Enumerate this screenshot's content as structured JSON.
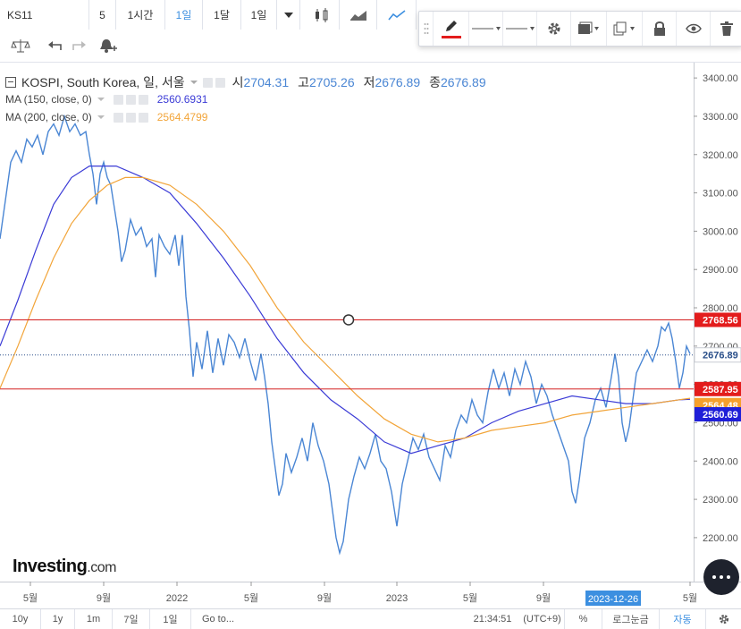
{
  "toolbar": {
    "symbol": "KS11",
    "interval_number": "5",
    "intervals": [
      "1시간",
      "1일",
      "1달",
      "1일"
    ],
    "active_interval": "1일"
  },
  "legend": {
    "title": "KOSPI, South Korea, 일, 서울",
    "open_label": "시",
    "open": "2704.31",
    "high_label": "고",
    "high": "2705.26",
    "low_label": "저",
    "low": "2676.89",
    "close_label": "종",
    "close": "2676.89",
    "ma150_label": "MA (150, close, 0)",
    "ma150_value": "2560.6931",
    "ma200_label": "MA (200, close, 0)",
    "ma200_value": "2564.4799"
  },
  "price_labels": {
    "line_top": "2768.56",
    "last": "2676.89",
    "line_bottom": "2587.95",
    "ma200": "2564.48",
    "ma150": "2560.69"
  },
  "date_highlight": "2023-12-26",
  "logo": {
    "main": "Investing",
    "suffix": ".com"
  },
  "bottom": {
    "ranges": [
      "10y",
      "1y",
      "1m",
      "7일",
      "1일"
    ],
    "goto": "Go to...",
    "time": "21:34:51",
    "tz": "(UTC+9)",
    "percent": "%",
    "log": "로그눈금",
    "auto": "자동"
  },
  "colors": {
    "price": "#4a86d4",
    "ma150": "#3b3bd6",
    "ma200": "#f2a53a",
    "hline": "#d32020",
    "accent": "#3c8fe0",
    "hline_label": "#e31c1c",
    "ma150_label": "#1f1fd8",
    "ma200_label": "#f5a02c"
  },
  "chart_data": {
    "type": "line",
    "title": "KOSPI, South Korea, 일, 서울",
    "x_ticks": [
      "5월",
      "9월",
      "2022",
      "5월",
      "9월",
      "2023",
      "5월",
      "9월",
      "5월"
    ],
    "y_ticks": [
      2200,
      2300,
      2400,
      2500,
      2600,
      2700,
      2800,
      2900,
      3000,
      3100,
      3200,
      3300,
      3400
    ],
    "ylim": [
      2090,
      3440
    ],
    "series": [
      {
        "name": "KOSPI",
        "points": [
          [
            0,
            2980
          ],
          [
            6,
            3080
          ],
          [
            12,
            3180
          ],
          [
            18,
            3210
          ],
          [
            24,
            3180
          ],
          [
            30,
            3240
          ],
          [
            36,
            3220
          ],
          [
            42,
            3250
          ],
          [
            48,
            3200
          ],
          [
            54,
            3260
          ],
          [
            60,
            3280
          ],
          [
            66,
            3250
          ],
          [
            72,
            3300
          ],
          [
            78,
            3260
          ],
          [
            84,
            3280
          ],
          [
            90,
            3250
          ],
          [
            96,
            3260
          ],
          [
            100,
            3200
          ],
          [
            104,
            3150
          ],
          [
            108,
            3070
          ],
          [
            112,
            3150
          ],
          [
            116,
            3180
          ],
          [
            120,
            3140
          ],
          [
            124,
            3120
          ],
          [
            128,
            3060
          ],
          [
            132,
            3000
          ],
          [
            136,
            2920
          ],
          [
            140,
            2950
          ],
          [
            146,
            3030
          ],
          [
            152,
            2990
          ],
          [
            158,
            3010
          ],
          [
            164,
            2960
          ],
          [
            170,
            2980
          ],
          [
            174,
            2880
          ],
          [
            178,
            2990
          ],
          [
            184,
            2960
          ],
          [
            190,
            2940
          ],
          [
            196,
            2990
          ],
          [
            200,
            2910
          ],
          [
            204,
            2990
          ],
          [
            208,
            2830
          ],
          [
            212,
            2740
          ],
          [
            216,
            2620
          ],
          [
            220,
            2710
          ],
          [
            226,
            2640
          ],
          [
            232,
            2740
          ],
          [
            238,
            2630
          ],
          [
            244,
            2720
          ],
          [
            250,
            2650
          ],
          [
            256,
            2730
          ],
          [
            262,
            2710
          ],
          [
            268,
            2670
          ],
          [
            274,
            2720
          ],
          [
            280,
            2660
          ],
          [
            286,
            2610
          ],
          [
            292,
            2680
          ],
          [
            296,
            2620
          ],
          [
            300,
            2550
          ],
          [
            304,
            2450
          ],
          [
            308,
            2380
          ],
          [
            312,
            2310
          ],
          [
            316,
            2340
          ],
          [
            320,
            2420
          ],
          [
            326,
            2370
          ],
          [
            332,
            2410
          ],
          [
            338,
            2460
          ],
          [
            344,
            2400
          ],
          [
            350,
            2500
          ],
          [
            356,
            2440
          ],
          [
            362,
            2400
          ],
          [
            368,
            2340
          ],
          [
            372,
            2270
          ],
          [
            376,
            2200
          ],
          [
            380,
            2160
          ],
          [
            384,
            2190
          ],
          [
            390,
            2300
          ],
          [
            396,
            2360
          ],
          [
            402,
            2410
          ],
          [
            408,
            2380
          ],
          [
            414,
            2420
          ],
          [
            420,
            2470
          ],
          [
            426,
            2400
          ],
          [
            432,
            2380
          ],
          [
            438,
            2320
          ],
          [
            444,
            2230
          ],
          [
            450,
            2340
          ],
          [
            456,
            2400
          ],
          [
            462,
            2460
          ],
          [
            468,
            2430
          ],
          [
            474,
            2470
          ],
          [
            480,
            2410
          ],
          [
            486,
            2380
          ],
          [
            492,
            2350
          ],
          [
            498,
            2440
          ],
          [
            504,
            2410
          ],
          [
            510,
            2480
          ],
          [
            516,
            2520
          ],
          [
            522,
            2500
          ],
          [
            528,
            2560
          ],
          [
            534,
            2520
          ],
          [
            540,
            2500
          ],
          [
            546,
            2580
          ],
          [
            552,
            2640
          ],
          [
            558,
            2590
          ],
          [
            564,
            2630
          ],
          [
            570,
            2570
          ],
          [
            576,
            2640
          ],
          [
            582,
            2600
          ],
          [
            588,
            2660
          ],
          [
            594,
            2620
          ],
          [
            600,
            2550
          ],
          [
            606,
            2600
          ],
          [
            612,
            2570
          ],
          [
            618,
            2520
          ],
          [
            624,
            2480
          ],
          [
            630,
            2440
          ],
          [
            636,
            2400
          ],
          [
            640,
            2320
          ],
          [
            644,
            2290
          ],
          [
            648,
            2350
          ],
          [
            654,
            2460
          ],
          [
            660,
            2500
          ],
          [
            666,
            2560
          ],
          [
            672,
            2590
          ],
          [
            678,
            2540
          ],
          [
            684,
            2620
          ],
          [
            688,
            2680
          ],
          [
            692,
            2620
          ],
          [
            696,
            2500
          ],
          [
            700,
            2450
          ],
          [
            704,
            2490
          ],
          [
            708,
            2560
          ],
          [
            712,
            2630
          ],
          [
            718,
            2660
          ],
          [
            724,
            2690
          ],
          [
            730,
            2660
          ],
          [
            736,
            2700
          ],
          [
            740,
            2750
          ],
          [
            744,
            2740
          ],
          [
            748,
            2760
          ],
          [
            752,
            2720
          ],
          [
            756,
            2660
          ],
          [
            760,
            2590
          ],
          [
            764,
            2630
          ],
          [
            768,
            2700
          ],
          [
            772,
            2680
          ]
        ]
      },
      {
        "name": "MA (150, close, 0)",
        "points": [
          [
            0,
            2700
          ],
          [
            20,
            2820
          ],
          [
            40,
            2950
          ],
          [
            60,
            3070
          ],
          [
            80,
            3140
          ],
          [
            100,
            3170
          ],
          [
            130,
            3170
          ],
          [
            160,
            3140
          ],
          [
            190,
            3100
          ],
          [
            220,
            3020
          ],
          [
            250,
            2930
          ],
          [
            280,
            2830
          ],
          [
            310,
            2720
          ],
          [
            340,
            2630
          ],
          [
            370,
            2560
          ],
          [
            400,
            2510
          ],
          [
            430,
            2450
          ],
          [
            460,
            2420
          ],
          [
            490,
            2440
          ],
          [
            520,
            2460
          ],
          [
            550,
            2500
          ],
          [
            580,
            2530
          ],
          [
            610,
            2550
          ],
          [
            640,
            2570
          ],
          [
            670,
            2560
          ],
          [
            700,
            2550
          ],
          [
            730,
            2550
          ],
          [
            760,
            2560
          ],
          [
            772,
            2561
          ]
        ]
      },
      {
        "name": "MA (200, close, 0)",
        "points": [
          [
            0,
            2590
          ],
          [
            20,
            2700
          ],
          [
            40,
            2820
          ],
          [
            60,
            2930
          ],
          [
            80,
            3020
          ],
          [
            100,
            3080
          ],
          [
            120,
            3120
          ],
          [
            140,
            3140
          ],
          [
            160,
            3140
          ],
          [
            190,
            3120
          ],
          [
            220,
            3070
          ],
          [
            250,
            3000
          ],
          [
            280,
            2910
          ],
          [
            310,
            2800
          ],
          [
            340,
            2710
          ],
          [
            370,
            2640
          ],
          [
            400,
            2570
          ],
          [
            430,
            2510
          ],
          [
            460,
            2470
          ],
          [
            490,
            2450
          ],
          [
            520,
            2460
          ],
          [
            550,
            2480
          ],
          [
            580,
            2490
          ],
          [
            610,
            2500
          ],
          [
            640,
            2520
          ],
          [
            670,
            2530
          ],
          [
            700,
            2540
          ],
          [
            730,
            2550
          ],
          [
            760,
            2560
          ],
          [
            772,
            2564
          ]
        ]
      }
    ],
    "hlines": [
      2768.56,
      2587.95
    ],
    "dotted_line": 2676.89
  }
}
